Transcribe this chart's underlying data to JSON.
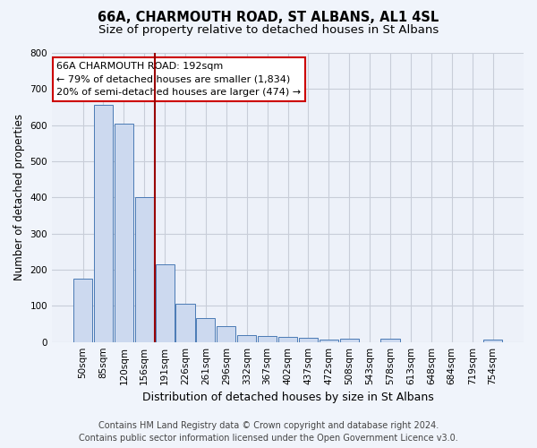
{
  "title_line1": "66A, CHARMOUTH ROAD, ST ALBANS, AL1 4SL",
  "title_line2": "Size of property relative to detached houses in St Albans",
  "xlabel": "Distribution of detached houses by size in St Albans",
  "ylabel": "Number of detached properties",
  "footer_line1": "Contains HM Land Registry data © Crown copyright and database right 2024.",
  "footer_line2": "Contains public sector information licensed under the Open Government Licence v3.0.",
  "annotation_line1": "66A CHARMOUTH ROAD: 192sqm",
  "annotation_line2": "← 79% of detached houses are smaller (1,834)",
  "annotation_line3": "20% of semi-detached houses are larger (474) →",
  "bar_categories": [
    "50sqm",
    "85sqm",
    "120sqm",
    "156sqm",
    "191sqm",
    "226sqm",
    "261sqm",
    "296sqm",
    "332sqm",
    "367sqm",
    "402sqm",
    "437sqm",
    "472sqm",
    "508sqm",
    "543sqm",
    "578sqm",
    "613sqm",
    "648sqm",
    "684sqm",
    "719sqm",
    "754sqm"
  ],
  "bar_values": [
    175,
    655,
    605,
    400,
    215,
    107,
    65,
    43,
    18,
    16,
    14,
    12,
    7,
    9,
    0,
    8,
    0,
    0,
    0,
    0,
    7
  ],
  "bar_color": "#ccd9ef",
  "bar_edge_color": "#4a7ab5",
  "vline_color": "#990000",
  "vline_x_index": 4,
  "ylim": [
    0,
    800
  ],
  "yticks": [
    0,
    100,
    200,
    300,
    400,
    500,
    600,
    700,
    800
  ],
  "fig_bg_color": "#f0f4fb",
  "plot_bg_color": "#edf1f9",
  "grid_color": "#c8cdd8",
  "annotation_box_facecolor": "#ffffff",
  "annotation_box_edgecolor": "#cc0000",
  "title_fontsize": 10.5,
  "subtitle_fontsize": 9.5,
  "ylabel_fontsize": 8.5,
  "xlabel_fontsize": 9,
  "tick_fontsize": 7.5,
  "footer_fontsize": 7,
  "annotation_fontsize": 8
}
